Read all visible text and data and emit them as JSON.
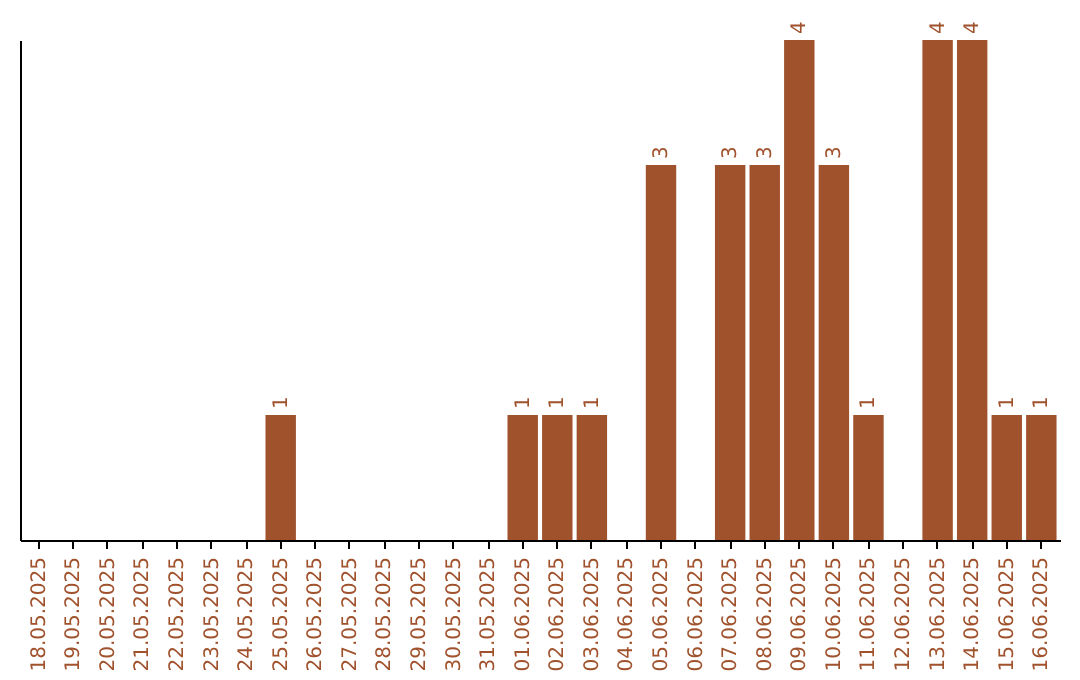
{
  "chart_data": {
    "type": "bar",
    "categories": [
      "18.05.2025",
      "19.05.2025",
      "20.05.2025",
      "21.05.2025",
      "22.05.2025",
      "23.05.2025",
      "24.05.2025",
      "25.05.2025",
      "26.05.2025",
      "27.05.2025",
      "28.05.2025",
      "29.05.2025",
      "30.05.2025",
      "31.05.2025",
      "01.06.2025",
      "02.06.2025",
      "03.06.2025",
      "04.06.2025",
      "05.06.2025",
      "06.06.2025",
      "07.06.2025",
      "08.06.2025",
      "09.06.2025",
      "10.06.2025",
      "11.06.2025",
      "12.06.2025",
      "13.06.2025",
      "14.06.2025",
      "15.06.2025",
      "16.06.2025"
    ],
    "values": [
      0,
      0,
      0,
      0,
      0,
      0,
      0,
      1,
      0,
      0,
      0,
      0,
      0,
      0,
      1,
      1,
      1,
      0,
      3,
      0,
      3,
      3,
      4,
      3,
      1,
      0,
      4,
      4,
      1,
      1
    ],
    "value_labels": [
      null,
      null,
      null,
      null,
      null,
      null,
      null,
      "1",
      null,
      null,
      null,
      null,
      null,
      null,
      "1",
      "1",
      "1",
      null,
      "3",
      null,
      "3",
      "3",
      "4",
      "3",
      "1",
      null,
      "4",
      "4",
      "1",
      "1"
    ],
    "color": "#a0522d",
    "tick_labels": "x"
  }
}
